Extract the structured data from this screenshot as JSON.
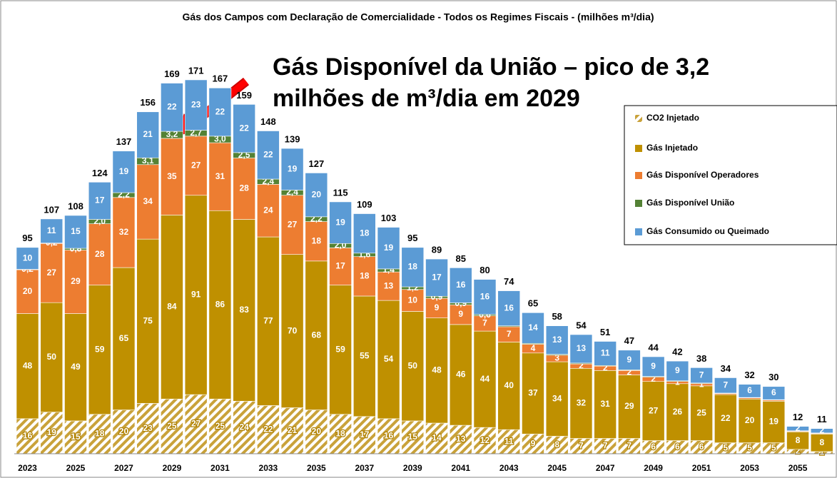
{
  "chart_data": {
    "type": "bar",
    "stacked": true,
    "title": "Gás  dos Campos com Declaração de Comercialidade - Todos os Regimes Fiscais - (milhões m³/dia)",
    "annotation": [
      "Gás Disponível da União – pico de 3,2",
      "milhões de m³/dia em 2029"
    ],
    "categories": [
      "2023",
      null,
      "2025",
      null,
      "2027",
      null,
      "2029",
      null,
      "2031",
      null,
      "2033",
      null,
      "2035",
      null,
      "2037",
      null,
      "2039",
      null,
      "2041",
      null,
      "2043",
      null,
      "2045",
      null,
      "2047",
      null,
      "2049",
      null,
      "2051",
      null,
      "2053",
      null,
      "2055",
      null
    ],
    "totals": [
      95,
      107,
      108,
      124,
      137,
      156,
      169,
      171,
      167,
      159,
      148,
      139,
      127,
      115,
      109,
      103,
      95,
      89,
      85,
      80,
      74,
      65,
      58,
      54,
      51,
      47,
      44,
      42,
      38,
      34,
      32,
      30,
      12,
      11
    ],
    "series": [
      {
        "name": "CO2 Injetado",
        "color": "#bf9000",
        "pattern": "hatch",
        "values": [
          16,
          19,
          15,
          18,
          20,
          23,
          25,
          27,
          25,
          24,
          22,
          21,
          20,
          18,
          17,
          16,
          15,
          14,
          13,
          12,
          11,
          9,
          8,
          7,
          7,
          7,
          6,
          6,
          6,
          5,
          5,
          5,
          2,
          1
        ]
      },
      {
        "name": "Gás Injetado",
        "color": "#bf9000",
        "values": [
          48,
          50,
          49,
          59,
          65,
          75,
          84,
          91,
          86,
          83,
          77,
          70,
          68,
          59,
          55,
          54,
          50,
          48,
          46,
          44,
          40,
          37,
          34,
          32,
          31,
          29,
          27,
          26,
          25,
          22,
          20,
          19,
          8,
          8
        ]
      },
      {
        "name": "Gás Disponível Operadores",
        "color": "#ed7d31",
        "values": [
          20,
          27,
          29,
          28,
          32,
          34,
          35,
          27,
          31,
          28,
          24,
          27,
          18,
          17,
          18,
          13,
          10,
          9,
          9,
          7,
          7,
          4,
          3,
          2,
          2,
          2,
          2,
          1,
          1,
          0.5,
          0.5,
          0.5,
          0.3,
          0.3
        ],
        "value_labels": [
          "20",
          "27",
          "29",
          "28",
          "32",
          "34",
          "35",
          "27",
          "31",
          "28",
          "24",
          "27",
          "18",
          "17",
          "18",
          "13",
          "10",
          "9",
          "9",
          "7",
          "7",
          "4",
          "3",
          "2",
          "2",
          "2",
          "2",
          "1",
          "1",
          null,
          null,
          null,
          null,
          null
        ]
      },
      {
        "name": "Gás Disponível União",
        "color": "#548235",
        "values": [
          0.2,
          0.2,
          0.8,
          2.0,
          2.2,
          3.1,
          3.2,
          2.7,
          3.0,
          2.5,
          2.4,
          2.4,
          2.2,
          2.0,
          1.6,
          1.4,
          1.2,
          0.9,
          0.9,
          0.6,
          0.4,
          0.4,
          0.4,
          0.4,
          0.3,
          0.3,
          0.3,
          0.3,
          0.3,
          0.2,
          0.2,
          0.2,
          0.2,
          0.2
        ],
        "value_labels": [
          "0,2",
          "0,2",
          "0,8",
          "2,0",
          "2,2",
          "3,1",
          "3,2",
          "2,7",
          "3,0",
          "2,5",
          "2,4",
          "2,4",
          "2,2",
          "2,0",
          "1,6",
          "1,4",
          "1,2",
          "0,9",
          "0,9",
          "0,6",
          null,
          null,
          null,
          null,
          null,
          null,
          null,
          null,
          null,
          null,
          null,
          null,
          null,
          null
        ]
      },
      {
        "name": "Gás Consumido ou Queimado",
        "color": "#5b9bd5",
        "values": [
          10,
          11,
          15,
          17,
          19,
          21,
          22,
          23,
          22,
          22,
          22,
          19,
          20,
          19,
          18,
          19,
          18,
          17,
          16,
          16,
          16,
          14,
          13,
          13,
          11,
          9,
          9,
          9,
          7,
          7,
          6,
          6,
          2,
          2
        ]
      }
    ]
  }
}
